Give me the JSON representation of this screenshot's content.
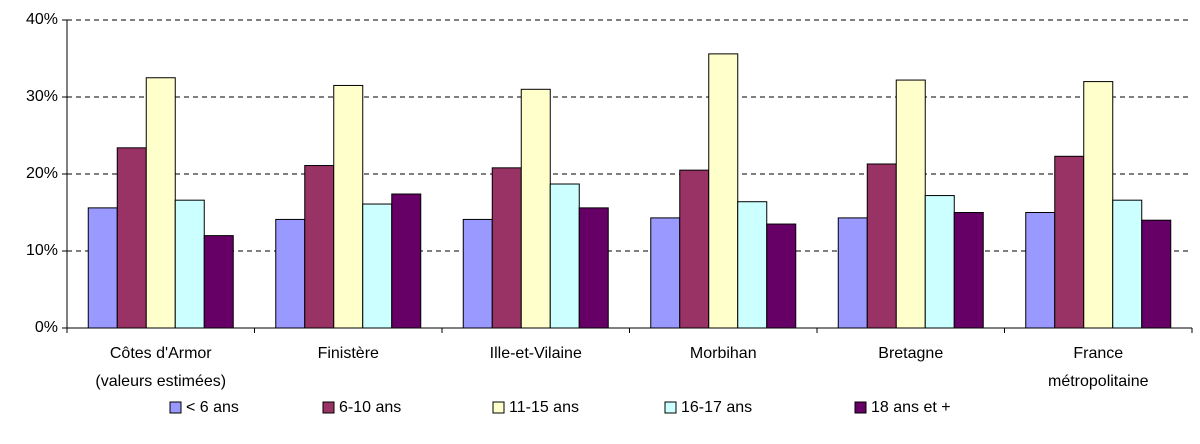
{
  "chart_data": {
    "type": "bar",
    "categories": [
      [
        "Côtes d'Armor",
        "(valeurs estimées)"
      ],
      [
        "Finistère"
      ],
      [
        "Ille-et-Vilaine"
      ],
      [
        "Morbihan"
      ],
      [
        "Bretagne"
      ],
      [
        "France",
        "métropolitaine"
      ]
    ],
    "series": [
      {
        "name": "< 6 ans",
        "color": "#9999ff",
        "values": [
          15.6,
          14.1,
          14.1,
          14.3,
          14.3,
          15.0
        ]
      },
      {
        "name": "6-10 ans",
        "color": "#993366",
        "values": [
          23.4,
          21.1,
          20.8,
          20.5,
          21.3,
          22.3
        ]
      },
      {
        "name": "11-15 ans",
        "color": "#ffffcc",
        "values": [
          32.5,
          31.5,
          31.0,
          35.6,
          32.2,
          32.0
        ]
      },
      {
        "name": "16-17 ans",
        "color": "#ccffff",
        "values": [
          16.6,
          16.1,
          18.7,
          16.4,
          17.2,
          16.6
        ]
      },
      {
        "name": "18 ans et +",
        "color": "#660066",
        "values": [
          12.0,
          17.4,
          15.6,
          13.5,
          15.0,
          14.0
        ]
      }
    ],
    "ylim": [
      0,
      40
    ],
    "yticks": [
      {
        "value": 0,
        "label": "0%"
      },
      {
        "value": 10,
        "label": "10%"
      },
      {
        "value": 20,
        "label": "20%"
      },
      {
        "value": 30,
        "label": "30%"
      },
      {
        "value": 40,
        "label": "40%"
      }
    ],
    "grid": true,
    "legend": "bottom"
  }
}
